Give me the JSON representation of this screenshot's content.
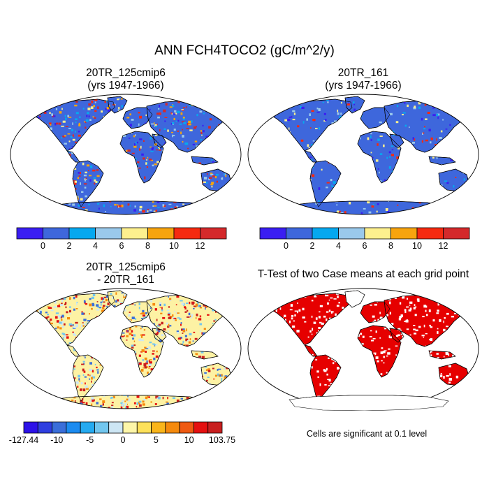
{
  "title": "ANN FCH4TOCO2 (gC/m^2/y)",
  "panels": [
    {
      "id": "p1",
      "title_line1": "20TR_125cmip6",
      "title_line2": "(yrs 1947-1966)",
      "land_base": "#3e67dc"
    },
    {
      "id": "p2",
      "title_line1": "20TR_161",
      "title_line2": "(yrs 1947-1966)",
      "land_base": "#3e67dc"
    },
    {
      "id": "p3",
      "title_line1": "20TR_125cmip6",
      "title_line2": "- 20TR_161",
      "land_base": "#fdf2a4"
    },
    {
      "id": "p4",
      "title_line1": "T-Test of two Case means at each grid point",
      "title_line2": "",
      "land_base": "#e60000"
    }
  ],
  "colorbar_top": {
    "colors": [
      "#3a1ef2",
      "#3e67dc",
      "#06a8ef",
      "#9ac9eb",
      "#fdf08e",
      "#f7a40e",
      "#f52a10",
      "#d4292b"
    ],
    "tick_labels": [
      "0",
      "2",
      "4",
      "6",
      "8",
      "10",
      "12"
    ]
  },
  "colorbar_bottom": {
    "colors": [
      "#2d12e8",
      "#2f3fe0",
      "#3a6ed9",
      "#1b8bf0",
      "#25aaf0",
      "#72c6ee",
      "#cde6f4",
      "#fdf6a8",
      "#fde15a",
      "#f9b51a",
      "#f58a0d",
      "#ef5a12",
      "#e51010",
      "#c81f1f"
    ],
    "tick_labels": [
      "-127.44",
      "-10",
      "-5",
      "0",
      "5",
      "10",
      "103.75"
    ]
  },
  "note": "Cells are significant at 0.1 level",
  "colors": {
    "ocean": "#ffffff",
    "outline": "#000000",
    "speck_hot": [
      "#f52a10",
      "#d4292b",
      "#f7a40e",
      "#fdf08e"
    ],
    "speck_cool": [
      "#06a8ef",
      "#9ac9eb",
      "#3a1ef2"
    ],
    "speck_diff": [
      "#e51010",
      "#f58a0d",
      "#3a6ed9",
      "#72c6ee",
      "#cde6f4",
      "#c81f1f"
    ],
    "speck_ttest": [
      "#ffffff"
    ]
  }
}
